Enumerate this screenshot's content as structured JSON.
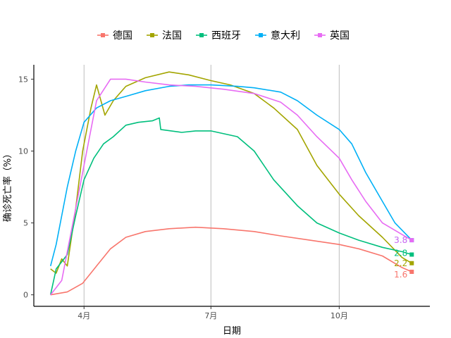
{
  "chart_data": {
    "type": "line",
    "xlabel": "日期",
    "ylabel": "确诊死亡率（%）",
    "ylim": [
      0,
      15
    ],
    "y_ticks": [
      0,
      5,
      10,
      15
    ],
    "x_ticks": [
      "4月",
      "7月",
      "10月"
    ],
    "grid": "vertical major at months",
    "legend_position": "top",
    "series": [
      {
        "name": "德国",
        "color": "#F8766D",
        "end_label": "1.6",
        "x": [
          "2020-03-08",
          "2020-03-20",
          "2020-03-31",
          "2020-04-10",
          "2020-04-20",
          "2020-05-01",
          "2020-05-15",
          "2020-06-01",
          "2020-06-20",
          "2020-07-10",
          "2020-08-01",
          "2020-08-20",
          "2020-09-10",
          "2020-10-01",
          "2020-10-15",
          "2020-11-01",
          "2020-11-15",
          "2020-11-22"
        ],
        "values": [
          0.0,
          0.2,
          0.8,
          2.0,
          3.2,
          4.0,
          4.4,
          4.6,
          4.7,
          4.6,
          4.4,
          4.1,
          3.8,
          3.5,
          3.2,
          2.7,
          1.9,
          1.6
        ]
      },
      {
        "name": "法国",
        "color": "#A3A500",
        "end_label": "2.2",
        "x": [
          "2020-03-08",
          "2020-03-12",
          "2020-03-16",
          "2020-03-20",
          "2020-03-26",
          "2020-03-31",
          "2020-04-06",
          "2020-04-10",
          "2020-04-16",
          "2020-04-22",
          "2020-05-01",
          "2020-05-15",
          "2020-06-01",
          "2020-06-15",
          "2020-07-01",
          "2020-07-15",
          "2020-08-01",
          "2020-08-15",
          "2020-09-01",
          "2020-09-15",
          "2020-10-01",
          "2020-10-15",
          "2020-11-01",
          "2020-11-15",
          "2020-11-22"
        ],
        "values": [
          1.8,
          1.5,
          2.5,
          2.0,
          6.0,
          10.0,
          13.0,
          14.6,
          12.5,
          13.5,
          14.5,
          15.1,
          15.5,
          15.3,
          14.9,
          14.6,
          14.0,
          13.0,
          11.5,
          9.0,
          7.0,
          5.5,
          4.0,
          2.6,
          2.2
        ]
      },
      {
        "name": "西班牙",
        "color": "#00BF7D",
        "end_label": "2.8",
        "x": [
          "2020-03-08",
          "2020-03-12",
          "2020-03-16",
          "2020-03-20",
          "2020-03-26",
          "2020-04-01",
          "2020-04-08",
          "2020-04-15",
          "2020-04-22",
          "2020-05-01",
          "2020-05-10",
          "2020-05-20",
          "2020-05-25",
          "2020-05-26",
          "2020-06-10",
          "2020-06-20",
          "2020-07-01",
          "2020-07-20",
          "2020-08-01",
          "2020-08-15",
          "2020-09-01",
          "2020-09-15",
          "2020-10-01",
          "2020-10-15",
          "2020-11-01",
          "2020-11-15",
          "2020-11-22"
        ],
        "values": [
          0.0,
          1.8,
          2.3,
          2.8,
          5.5,
          8.0,
          9.5,
          10.5,
          11.0,
          11.8,
          12.0,
          12.1,
          12.3,
          11.5,
          11.3,
          11.4,
          11.4,
          11.0,
          10.0,
          8.0,
          6.2,
          5.0,
          4.3,
          3.8,
          3.3,
          3.0,
          2.8
        ]
      },
      {
        "name": "意大利",
        "color": "#00B0F6",
        "end_label": "3.8",
        "x": [
          "2020-03-08",
          "2020-03-12",
          "2020-03-16",
          "2020-03-20",
          "2020-03-26",
          "2020-04-01",
          "2020-04-10",
          "2020-04-20",
          "2020-05-01",
          "2020-05-15",
          "2020-06-01",
          "2020-06-15",
          "2020-07-01",
          "2020-07-20",
          "2020-08-01",
          "2020-08-20",
          "2020-09-01",
          "2020-09-15",
          "2020-10-01",
          "2020-10-10",
          "2020-10-20",
          "2020-11-01",
          "2020-11-10",
          "2020-11-22"
        ],
        "values": [
          2.0,
          3.5,
          5.5,
          7.5,
          10.0,
          12.0,
          13.0,
          13.5,
          13.8,
          14.2,
          14.5,
          14.6,
          14.6,
          14.5,
          14.4,
          14.1,
          13.5,
          12.5,
          11.5,
          10.5,
          8.5,
          6.5,
          5.0,
          3.8
        ]
      },
      {
        "name": "英国",
        "color": "#E76BF3",
        "end_label": "3.8",
        "x": [
          "2020-03-08",
          "2020-03-12",
          "2020-03-16",
          "2020-03-20",
          "2020-03-26",
          "2020-04-01",
          "2020-04-10",
          "2020-04-20",
          "2020-05-01",
          "2020-05-15",
          "2020-06-01",
          "2020-06-20",
          "2020-07-10",
          "2020-08-01",
          "2020-08-20",
          "2020-09-01",
          "2020-09-15",
          "2020-10-01",
          "2020-10-10",
          "2020-10-20",
          "2020-11-01",
          "2020-11-15",
          "2020-11-22"
        ],
        "values": [
          0.0,
          0.5,
          1.0,
          3.0,
          6.0,
          9.0,
          13.5,
          15.0,
          15.0,
          14.8,
          14.6,
          14.5,
          14.3,
          14.0,
          13.4,
          12.5,
          11.0,
          9.5,
          8.0,
          6.5,
          5.0,
          4.2,
          3.8
        ]
      }
    ]
  }
}
